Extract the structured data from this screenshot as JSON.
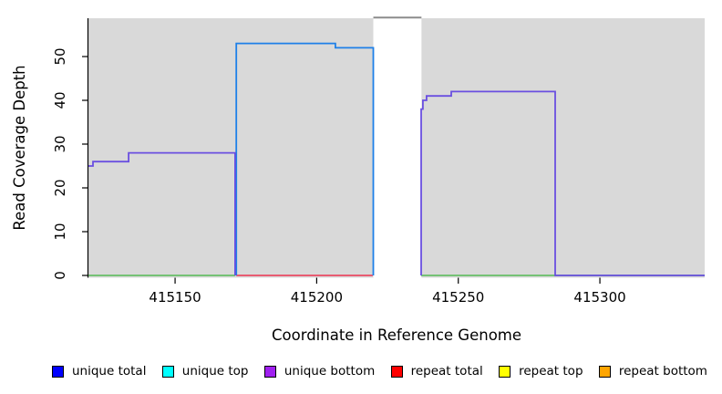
{
  "chart_data": {
    "type": "line",
    "title": "",
    "xlabel": "Coordinate in Reference Genome",
    "ylabel": "Read Coverage Depth",
    "xlim": [
      415119.4,
      415337.0
    ],
    "ylim": [
      0,
      58.75
    ],
    "xticks": [
      415150,
      415200,
      415250,
      415300
    ],
    "yticks": [
      0,
      10,
      20,
      30,
      40,
      50
    ],
    "grid": false,
    "background": "#d9d9d9",
    "legend_position": "bottom",
    "masked_region": {
      "x_start": 415220,
      "x_end": 415237,
      "fill": "#ffffff",
      "cap_color": "#8c8c8c",
      "note": "white band where coverage exceeds the y-axis range; gray cap line at top"
    },
    "series": [
      {
        "name": "baseline-green-left",
        "color": "#55bb55",
        "width": 1.4,
        "points": [
          [
            415119.4,
            0
          ],
          [
            415171.2,
            0
          ]
        ]
      },
      {
        "name": "baseline-green-right",
        "color": "#55bb55",
        "width": 1.4,
        "points": [
          [
            415236.9,
            0
          ],
          [
            415337.0,
            0
          ]
        ]
      },
      {
        "name": "repeat-total-baseline",
        "color": "#ee3350",
        "width": 1.4,
        "points": [
          [
            415171.6,
            0
          ],
          [
            415219.8,
            0
          ]
        ]
      },
      {
        "name": "unique-top-block",
        "color": "#1e80e8",
        "width": 1.8,
        "points": [
          [
            415171.6,
            0
          ],
          [
            415171.6,
            53
          ],
          [
            415206.6,
            53
          ],
          [
            415206.6,
            52
          ],
          [
            415220.0,
            52
          ],
          [
            415220.0,
            0
          ]
        ]
      },
      {
        "name": "unique-bottom-left-block",
        "color": "#6a4fe0",
        "width": 1.8,
        "points": [
          [
            415119.4,
            25
          ],
          [
            415121.0,
            25
          ],
          [
            415121.0,
            26
          ],
          [
            415133.6,
            26
          ],
          [
            415133.6,
            28
          ],
          [
            415171.2,
            28
          ],
          [
            415171.2,
            0
          ]
        ]
      },
      {
        "name": "unique-bottom-right-block",
        "color": "#6a4fe0",
        "width": 1.8,
        "points": [
          [
            415236.9,
            0
          ],
          [
            415236.9,
            38
          ],
          [
            415237.5,
            38
          ],
          [
            415237.5,
            40
          ],
          [
            415238.8,
            40
          ],
          [
            415238.8,
            41
          ],
          [
            415247.5,
            41
          ],
          [
            415247.5,
            42
          ],
          [
            415284.2,
            42
          ],
          [
            415284.2,
            0
          ],
          [
            415337.0,
            0
          ]
        ]
      }
    ],
    "legend": [
      {
        "label": "unique total",
        "color": "#0000ff"
      },
      {
        "label": "unique top",
        "color": "#00ffff"
      },
      {
        "label": "unique bottom",
        "color": "#a020f0"
      },
      {
        "label": "repeat total",
        "color": "#ff0000"
      },
      {
        "label": "repeat top",
        "color": "#ffff00"
      },
      {
        "label": "repeat bottom",
        "color": "#ffa500"
      }
    ]
  }
}
